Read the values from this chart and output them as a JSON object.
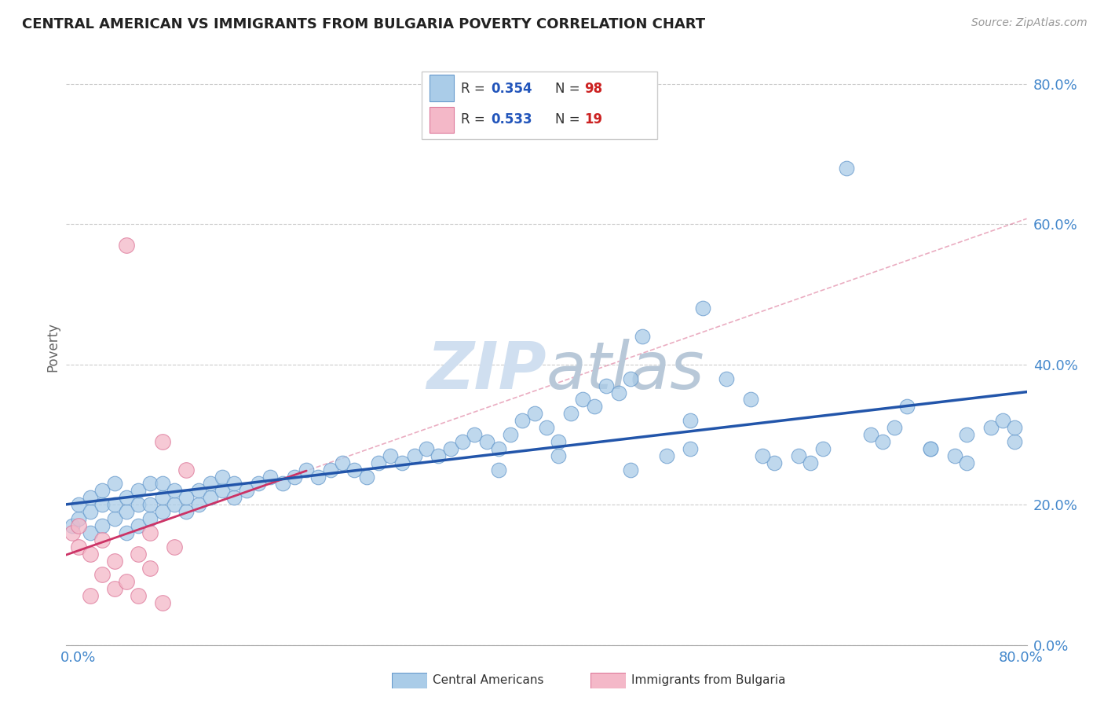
{
  "title": "CENTRAL AMERICAN VS IMMIGRANTS FROM BULGARIA POVERTY CORRELATION CHART",
  "source": "Source: ZipAtlas.com",
  "ylabel": "Poverty",
  "r1": 0.354,
  "n1": 98,
  "r2": 0.533,
  "n2": 19,
  "xmin": 0.0,
  "xmax": 0.8,
  "ymin": 0.0,
  "ymax": 0.85,
  "color1": "#aacce8",
  "color2": "#f4b8c8",
  "color1_edge": "#6699cc",
  "color2_edge": "#dd7799",
  "trendline1_color": "#2255aa",
  "trendline2_color": "#cc3366",
  "grid_color": "#cccccc",
  "watermark_color": "#d0dff0",
  "right_label_color": "#4488cc",
  "bottom_label_color": "#4488cc",
  "title_color": "#222222",
  "source_color": "#999999",
  "ylabel_color": "#666666",
  "central_americans_x": [
    0.005,
    0.01,
    0.01,
    0.02,
    0.02,
    0.02,
    0.03,
    0.03,
    0.03,
    0.04,
    0.04,
    0.04,
    0.05,
    0.05,
    0.05,
    0.06,
    0.06,
    0.06,
    0.07,
    0.07,
    0.07,
    0.08,
    0.08,
    0.08,
    0.09,
    0.09,
    0.1,
    0.1,
    0.11,
    0.11,
    0.12,
    0.12,
    0.13,
    0.13,
    0.14,
    0.14,
    0.15,
    0.16,
    0.17,
    0.18,
    0.19,
    0.2,
    0.21,
    0.22,
    0.23,
    0.24,
    0.25,
    0.26,
    0.27,
    0.28,
    0.29,
    0.3,
    0.31,
    0.32,
    0.33,
    0.34,
    0.35,
    0.36,
    0.37,
    0.38,
    0.39,
    0.4,
    0.41,
    0.42,
    0.43,
    0.44,
    0.45,
    0.46,
    0.47,
    0.48,
    0.5,
    0.52,
    0.53,
    0.55,
    0.57,
    0.59,
    0.61,
    0.63,
    0.65,
    0.67,
    0.69,
    0.7,
    0.72,
    0.74,
    0.75,
    0.77,
    0.78,
    0.79,
    0.36,
    0.41,
    0.47,
    0.52,
    0.58,
    0.62,
    0.68,
    0.72,
    0.75,
    0.79
  ],
  "central_americans_y": [
    0.17,
    0.18,
    0.2,
    0.16,
    0.19,
    0.21,
    0.17,
    0.2,
    0.22,
    0.18,
    0.2,
    0.23,
    0.16,
    0.19,
    0.21,
    0.17,
    0.2,
    0.22,
    0.18,
    0.2,
    0.23,
    0.19,
    0.21,
    0.23,
    0.2,
    0.22,
    0.19,
    0.21,
    0.2,
    0.22,
    0.21,
    0.23,
    0.22,
    0.24,
    0.21,
    0.23,
    0.22,
    0.23,
    0.24,
    0.23,
    0.24,
    0.25,
    0.24,
    0.25,
    0.26,
    0.25,
    0.24,
    0.26,
    0.27,
    0.26,
    0.27,
    0.28,
    0.27,
    0.28,
    0.29,
    0.3,
    0.29,
    0.28,
    0.3,
    0.32,
    0.33,
    0.31,
    0.29,
    0.33,
    0.35,
    0.34,
    0.37,
    0.36,
    0.38,
    0.44,
    0.27,
    0.32,
    0.48,
    0.38,
    0.35,
    0.26,
    0.27,
    0.28,
    0.68,
    0.3,
    0.31,
    0.34,
    0.28,
    0.27,
    0.26,
    0.31,
    0.32,
    0.29,
    0.25,
    0.27,
    0.25,
    0.28,
    0.27,
    0.26,
    0.29,
    0.28,
    0.3,
    0.31
  ],
  "bulgaria_x": [
    0.005,
    0.01,
    0.01,
    0.02,
    0.02,
    0.03,
    0.03,
    0.04,
    0.04,
    0.05,
    0.05,
    0.06,
    0.06,
    0.07,
    0.07,
    0.08,
    0.08,
    0.09,
    0.1
  ],
  "bulgaria_y": [
    0.16,
    0.14,
    0.17,
    0.07,
    0.13,
    0.1,
    0.15,
    0.08,
    0.12,
    0.57,
    0.09,
    0.07,
    0.13,
    0.11,
    0.16,
    0.06,
    0.29,
    0.14,
    0.25
  ]
}
